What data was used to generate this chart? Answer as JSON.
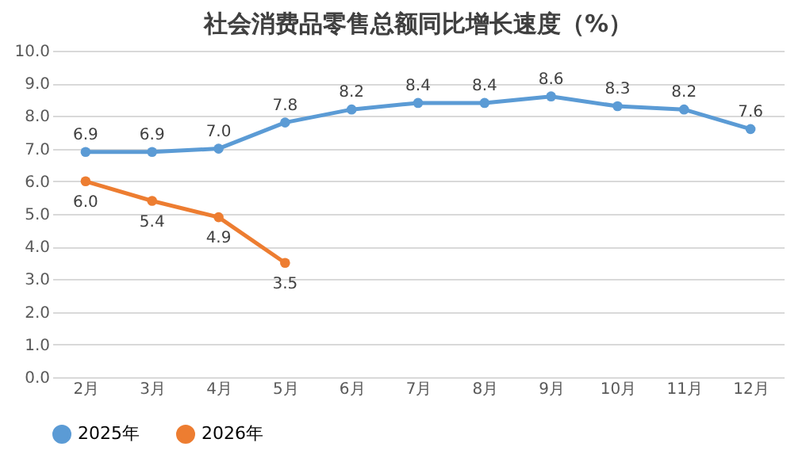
{
  "chart_data": {
    "type": "line",
    "title": "社会消费品零售总额同比增长速度（%）",
    "categories": [
      "2月",
      "3月",
      "4月",
      "5月",
      "6月",
      "7月",
      "8月",
      "9月",
      "10月",
      "11月",
      "12月"
    ],
    "series": [
      {
        "name": "2025年",
        "color": "#5b9bd5",
        "values": [
          6.9,
          6.9,
          7.0,
          7.8,
          8.2,
          8.4,
          8.4,
          8.6,
          8.3,
          8.2,
          7.6
        ],
        "value_labels": [
          "6.9",
          "6.9",
          "7.0",
          "7.8",
          "8.2",
          "8.4",
          "8.4",
          "8.6",
          "8.3",
          "8.2",
          "7.6"
        ]
      },
      {
        "name": "2026年",
        "color": "#ed7d31",
        "values": [
          6.0,
          5.4,
          4.9,
          3.5,
          null,
          null,
          null,
          null,
          null,
          null,
          null
        ],
        "value_labels": [
          "6.0",
          "5.4",
          "4.9",
          "3.5",
          null,
          null,
          null,
          null,
          null,
          null,
          null
        ]
      }
    ],
    "ylim": [
      0,
      10
    ],
    "yticks": [
      {
        "value": 0,
        "label": "0.0"
      },
      {
        "value": 1,
        "label": "1.0"
      },
      {
        "value": 2,
        "label": "2.0"
      },
      {
        "value": 3,
        "label": "3.0"
      },
      {
        "value": 4,
        "label": "4.0"
      },
      {
        "value": 5,
        "label": "5.0"
      },
      {
        "value": 6,
        "label": "6.0"
      },
      {
        "value": 7,
        "label": "7.0"
      },
      {
        "value": 8,
        "label": "8.0"
      },
      {
        "value": 9,
        "label": "9.0"
      },
      {
        "value": 10,
        "label": "10.0"
      }
    ],
    "grid": "y",
    "legend": "bottom",
    "marker": "circle",
    "line_style": "solid",
    "data_labels": true
  }
}
